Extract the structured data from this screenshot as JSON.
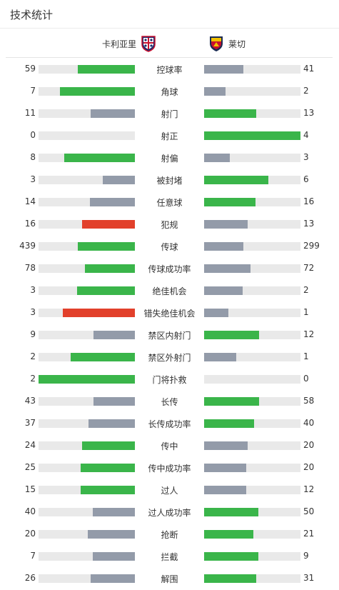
{
  "title": "技术统计",
  "teams": {
    "home": {
      "name": "卡利亚里",
      "logo": "cagliari-crest-icon"
    },
    "away": {
      "name": "莱切",
      "logo": "lecce-crest-icon"
    }
  },
  "colors": {
    "win": "#3ab54a",
    "lose": "#939ba9",
    "foul": "#e2402b",
    "track": "#e9e9e9"
  },
  "stats": [
    {
      "label": "控球率",
      "home": "59",
      "away": "41",
      "home_ratio": 0.59,
      "away_ratio": 0.41,
      "home_color": "win",
      "away_color": "lose"
    },
    {
      "label": "角球",
      "home": "7",
      "away": "2",
      "home_ratio": 0.78,
      "away_ratio": 0.22,
      "home_color": "win",
      "away_color": "lose"
    },
    {
      "label": "射门",
      "home": "11",
      "away": "13",
      "home_ratio": 0.46,
      "away_ratio": 0.54,
      "home_color": "lose",
      "away_color": "win"
    },
    {
      "label": "射正",
      "home": "0",
      "away": "4",
      "home_ratio": 0.0,
      "away_ratio": 1.0,
      "home_color": "lose",
      "away_color": "win"
    },
    {
      "label": "射偏",
      "home": "8",
      "away": "3",
      "home_ratio": 0.73,
      "away_ratio": 0.27,
      "home_color": "win",
      "away_color": "lose"
    },
    {
      "label": "被封堵",
      "home": "3",
      "away": "6",
      "home_ratio": 0.33,
      "away_ratio": 0.67,
      "home_color": "lose",
      "away_color": "win"
    },
    {
      "label": "任意球",
      "home": "14",
      "away": "16",
      "home_ratio": 0.47,
      "away_ratio": 0.53,
      "home_color": "lose",
      "away_color": "win"
    },
    {
      "label": "犯规",
      "home": "16",
      "away": "13",
      "home_ratio": 0.55,
      "away_ratio": 0.45,
      "home_color": "foul",
      "away_color": "lose"
    },
    {
      "label": "传球",
      "home": "439",
      "away": "299",
      "home_ratio": 0.59,
      "away_ratio": 0.41,
      "home_color": "win",
      "away_color": "lose"
    },
    {
      "label": "传球成功率",
      "home": "78",
      "away": "72",
      "home_ratio": 0.52,
      "away_ratio": 0.48,
      "home_color": "win",
      "away_color": "lose"
    },
    {
      "label": "绝佳机会",
      "home": "3",
      "away": "2",
      "home_ratio": 0.6,
      "away_ratio": 0.4,
      "home_color": "win",
      "away_color": "lose"
    },
    {
      "label": "错失绝佳机会",
      "home": "3",
      "away": "1",
      "home_ratio": 0.75,
      "away_ratio": 0.25,
      "home_color": "foul",
      "away_color": "lose"
    },
    {
      "label": "禁区内射门",
      "home": "9",
      "away": "12",
      "home_ratio": 0.43,
      "away_ratio": 0.57,
      "home_color": "lose",
      "away_color": "win"
    },
    {
      "label": "禁区外射门",
      "home": "2",
      "away": "1",
      "home_ratio": 0.67,
      "away_ratio": 0.33,
      "home_color": "win",
      "away_color": "lose"
    },
    {
      "label": "门将扑救",
      "home": "2",
      "away": "0",
      "home_ratio": 1.0,
      "away_ratio": 0.0,
      "home_color": "win",
      "away_color": "lose"
    },
    {
      "label": "长传",
      "home": "43",
      "away": "58",
      "home_ratio": 0.43,
      "away_ratio": 0.57,
      "home_color": "lose",
      "away_color": "win"
    },
    {
      "label": "长传成功率",
      "home": "37",
      "away": "40",
      "home_ratio": 0.48,
      "away_ratio": 0.52,
      "home_color": "lose",
      "away_color": "win"
    },
    {
      "label": "传中",
      "home": "24",
      "away": "20",
      "home_ratio": 0.55,
      "away_ratio": 0.45,
      "home_color": "win",
      "away_color": "lose"
    },
    {
      "label": "传中成功率",
      "home": "25",
      "away": "20",
      "home_ratio": 0.56,
      "away_ratio": 0.44,
      "home_color": "win",
      "away_color": "lose"
    },
    {
      "label": "过人",
      "home": "15",
      "away": "12",
      "home_ratio": 0.56,
      "away_ratio": 0.44,
      "home_color": "win",
      "away_color": "lose"
    },
    {
      "label": "过人成功率",
      "home": "40",
      "away": "50",
      "home_ratio": 0.44,
      "away_ratio": 0.56,
      "home_color": "lose",
      "away_color": "win"
    },
    {
      "label": "抢断",
      "home": "20",
      "away": "21",
      "home_ratio": 0.49,
      "away_ratio": 0.51,
      "home_color": "lose",
      "away_color": "win"
    },
    {
      "label": "拦截",
      "home": "7",
      "away": "9",
      "home_ratio": 0.44,
      "away_ratio": 0.56,
      "home_color": "lose",
      "away_color": "win"
    },
    {
      "label": "解围",
      "home": "26",
      "away": "31",
      "home_ratio": 0.46,
      "away_ratio": 0.54,
      "home_color": "lose",
      "away_color": "win"
    }
  ]
}
